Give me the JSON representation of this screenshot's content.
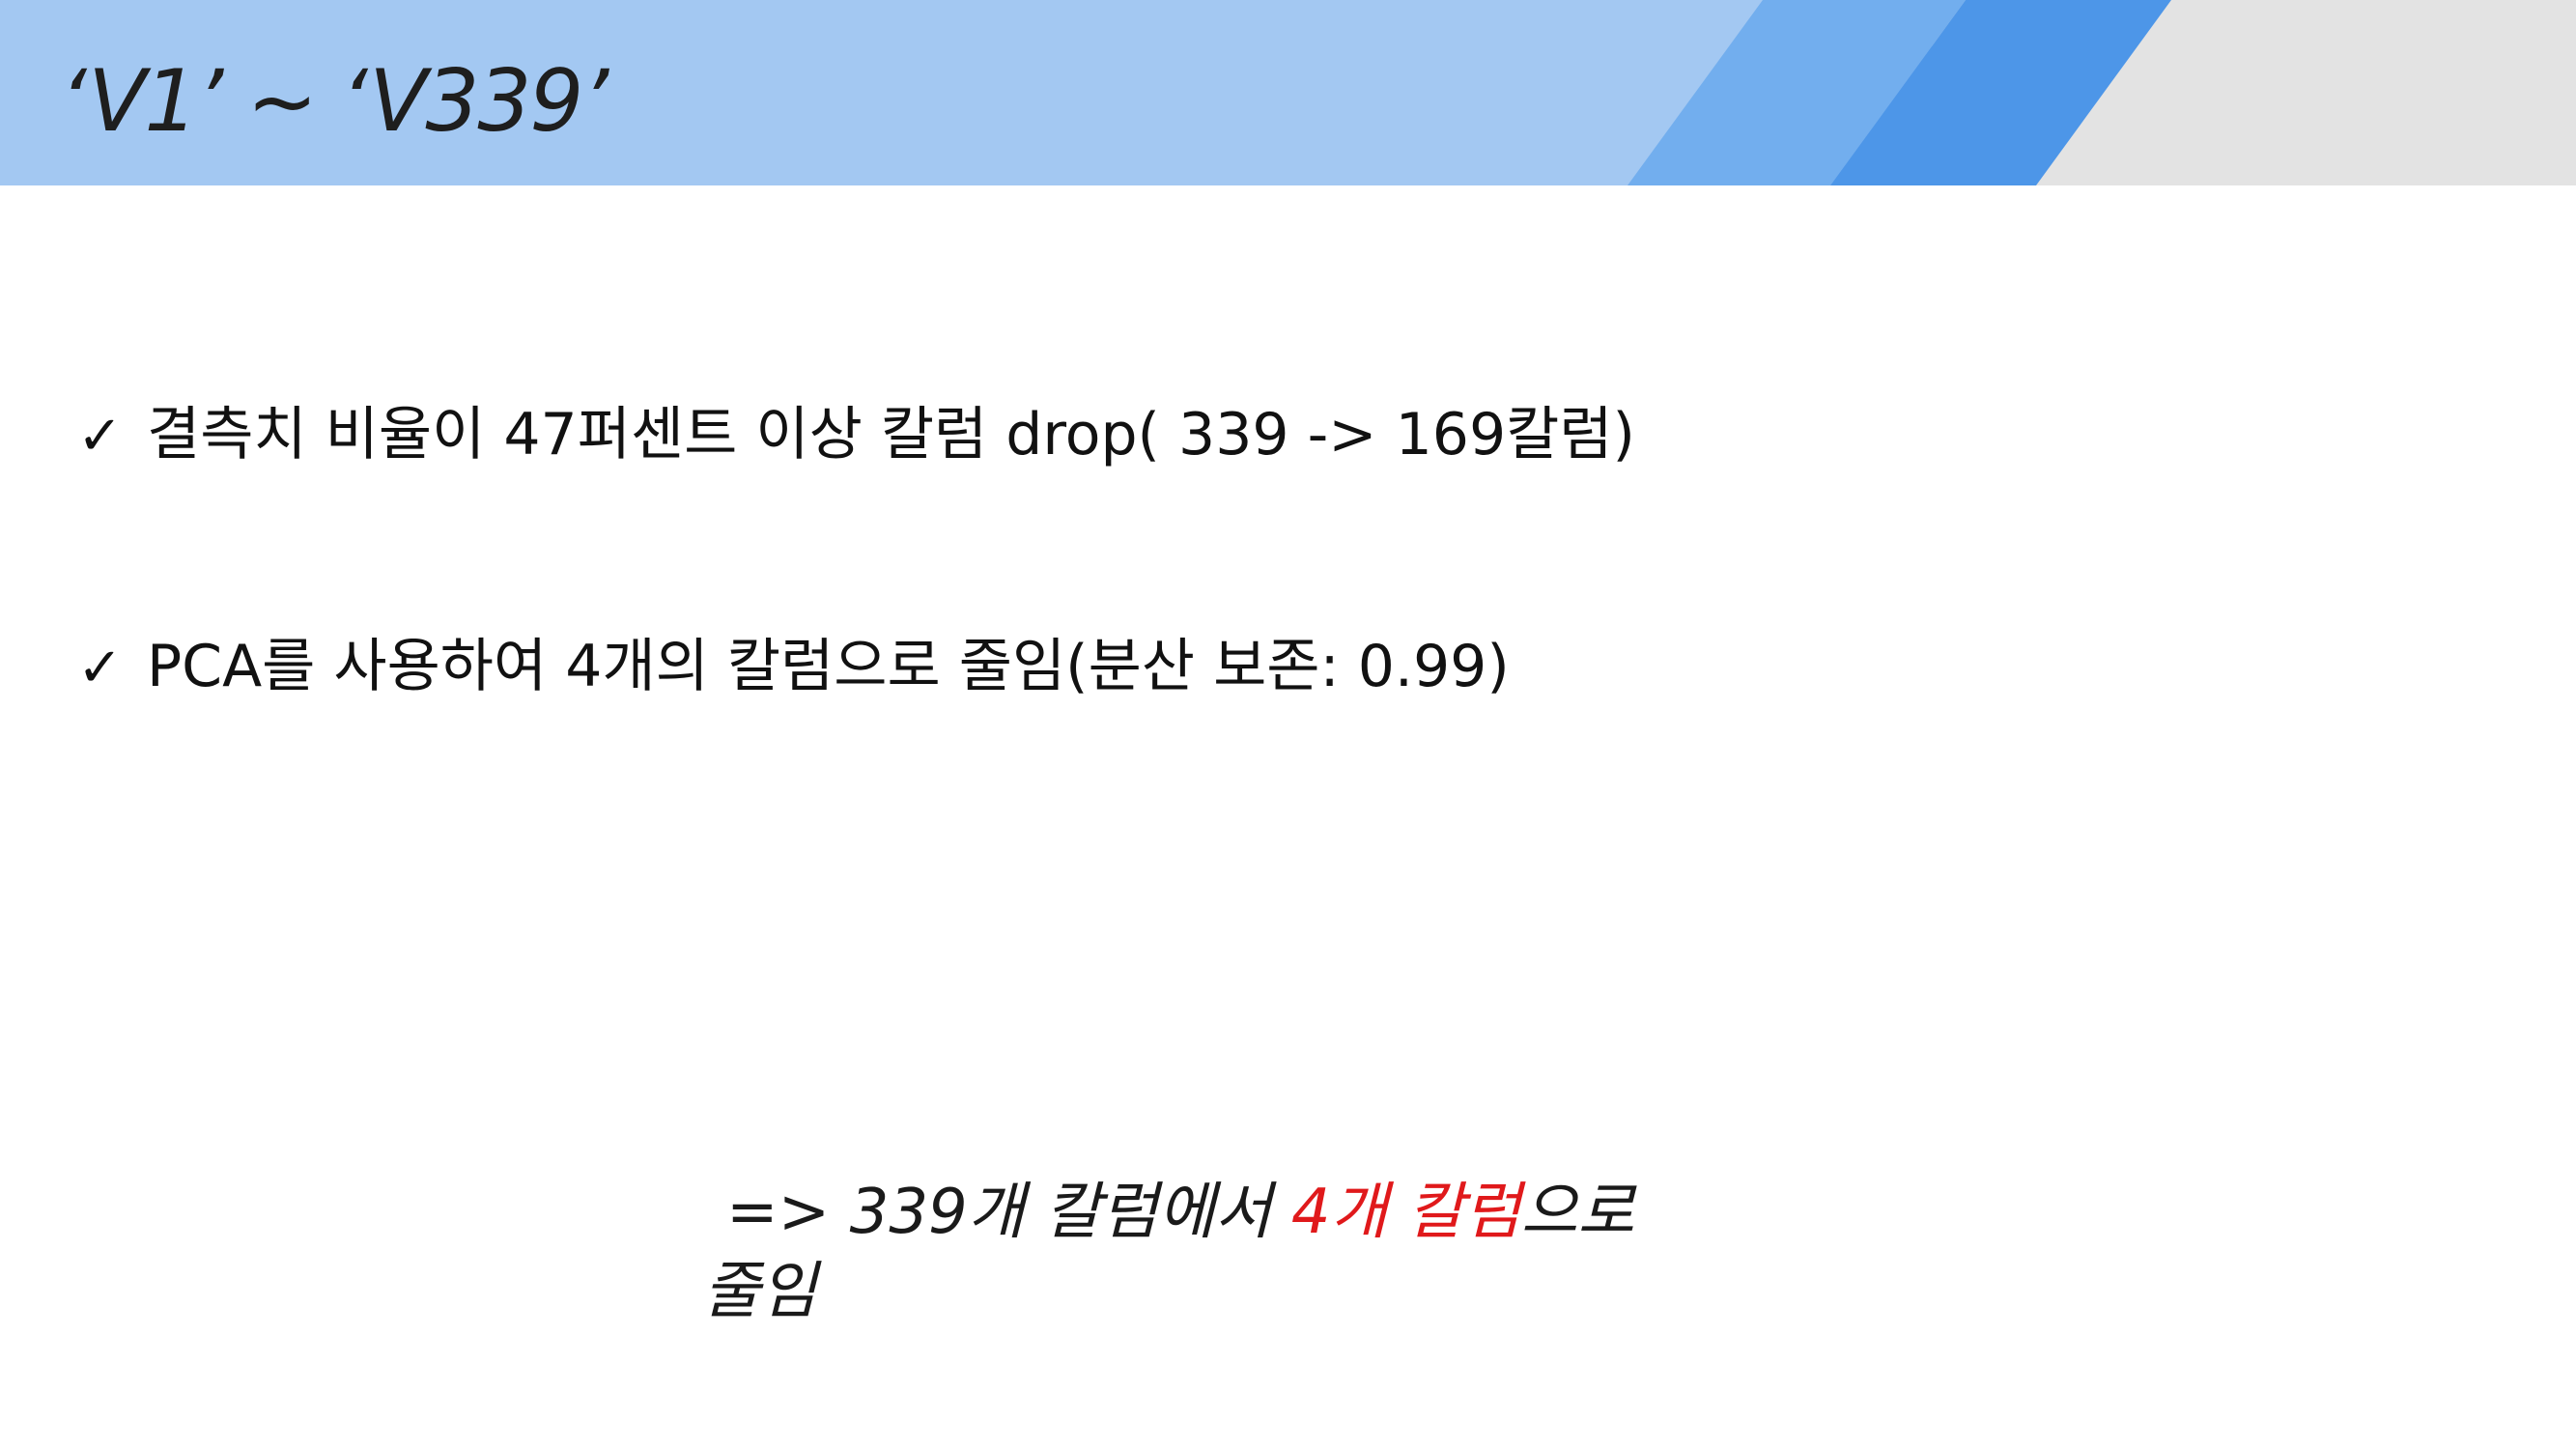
{
  "slide": {
    "title": "‘V1’ ~ ‘V339’"
  },
  "bullets": [
    {
      "icon": "check-icon",
      "glyph": "✓",
      "text": "결측치 비율이 47퍼센트 이상 칼럼 drop( 339 -> 169칼럼)"
    },
    {
      "icon": "check-icon",
      "glyph": "✓",
      "text": "PCA를 사용하여 4개의 칼럼으로 줄임(분산 보존: 0.99)"
    }
  ],
  "conclusion": {
    "prefix": "=> 339개 칼럼에서 ",
    "highlight": "4개 칼럼",
    "suffix": "으로",
    "continuation": "줄임",
    "highlight_color": "#e0191b"
  },
  "colors": {
    "header_light_blue": "#a3c8f2",
    "header_mid_blue": "#72aeee",
    "header_strong_blue": "#4d96e8",
    "header_gray": "#e3e3e3"
  }
}
